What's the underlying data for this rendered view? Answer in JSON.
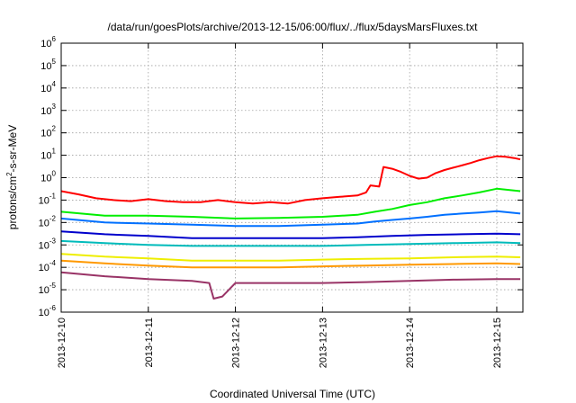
{
  "chart_data": {
    "type": "line",
    "title": "/data/run/goesPlots/archive/2013-12-15/06:00/flux/../flux/5daysMarsFluxes.txt",
    "xlabel": "Coordinated Universal Time (UTC)",
    "ylabel": {
      "base": "protons/cm",
      "sup": "2",
      "rest": "-s-sr-MeV"
    },
    "xlim": [
      0,
      5.3
    ],
    "ylim_log10": [
      -6,
      6
    ],
    "yscale": "log",
    "grid": true,
    "x_ticks": [
      {
        "x": 0,
        "label": "2013-12-10"
      },
      {
        "x": 1,
        "label": "2013-12-11"
      },
      {
        "x": 2,
        "label": "2013-12-12"
      },
      {
        "x": 3,
        "label": "2013-12-13"
      },
      {
        "x": 4,
        "label": "2013-12-14"
      },
      {
        "x": 5,
        "label": "2013-12-15"
      }
    ],
    "y_ticks": [
      {
        "exp": 6,
        "label": "10",
        "sup": "6"
      },
      {
        "exp": 5,
        "label": "10",
        "sup": "5"
      },
      {
        "exp": 4,
        "label": "10",
        "sup": "4"
      },
      {
        "exp": 3,
        "label": "10",
        "sup": "3"
      },
      {
        "exp": 2,
        "label": "10",
        "sup": "2"
      },
      {
        "exp": 1,
        "label": "10",
        "sup": "1"
      },
      {
        "exp": 0,
        "label": "10",
        "sup": "0"
      },
      {
        "exp": -1,
        "label": "10",
        "sup": "-1"
      },
      {
        "exp": -2,
        "label": "10",
        "sup": "-2"
      },
      {
        "exp": -3,
        "label": "10",
        "sup": "-3"
      },
      {
        "exp": -4,
        "label": "10",
        "sup": "-4"
      },
      {
        "exp": -5,
        "label": "10",
        "sup": "-5"
      },
      {
        "exp": -6,
        "label": "10",
        "sup": "-6"
      }
    ],
    "series": [
      {
        "color": "#ff0000",
        "points": [
          [
            0,
            0.25
          ],
          [
            0.2,
            0.18
          ],
          [
            0.4,
            0.12
          ],
          [
            0.6,
            0.1
          ],
          [
            0.8,
            0.09
          ],
          [
            1.0,
            0.11
          ],
          [
            1.2,
            0.09
          ],
          [
            1.4,
            0.08
          ],
          [
            1.6,
            0.08
          ],
          [
            1.8,
            0.1
          ],
          [
            2.0,
            0.08
          ],
          [
            2.2,
            0.07
          ],
          [
            2.4,
            0.08
          ],
          [
            2.6,
            0.07
          ],
          [
            2.8,
            0.1
          ],
          [
            3.0,
            0.12
          ],
          [
            3.2,
            0.14
          ],
          [
            3.4,
            0.16
          ],
          [
            3.5,
            0.22
          ],
          [
            3.55,
            0.45
          ],
          [
            3.65,
            0.4
          ],
          [
            3.7,
            3.0
          ],
          [
            3.8,
            2.5
          ],
          [
            3.9,
            1.8
          ],
          [
            4.0,
            1.2
          ],
          [
            4.1,
            0.9
          ],
          [
            4.2,
            1.0
          ],
          [
            4.3,
            1.6
          ],
          [
            4.4,
            2.2
          ],
          [
            4.5,
            2.8
          ],
          [
            4.6,
            3.5
          ],
          [
            4.7,
            4.5
          ],
          [
            4.8,
            6.0
          ],
          [
            4.9,
            7.5
          ],
          [
            5.0,
            9.0
          ],
          [
            5.1,
            8.5
          ],
          [
            5.2,
            7.5
          ],
          [
            5.27,
            6.5
          ]
        ]
      },
      {
        "color": "#00ee00",
        "points": [
          [
            0,
            0.03
          ],
          [
            0.5,
            0.02
          ],
          [
            1.0,
            0.02
          ],
          [
            1.5,
            0.018
          ],
          [
            2.0,
            0.015
          ],
          [
            2.5,
            0.016
          ],
          [
            3.0,
            0.018
          ],
          [
            3.4,
            0.022
          ],
          [
            3.6,
            0.03
          ],
          [
            3.8,
            0.04
          ],
          [
            4.0,
            0.06
          ],
          [
            4.2,
            0.08
          ],
          [
            4.4,
            0.12
          ],
          [
            4.6,
            0.16
          ],
          [
            4.8,
            0.22
          ],
          [
            5.0,
            0.32
          ],
          [
            5.27,
            0.25
          ]
        ]
      },
      {
        "color": "#0070ff",
        "points": [
          [
            0,
            0.015
          ],
          [
            0.5,
            0.01
          ],
          [
            1.0,
            0.009
          ],
          [
            1.5,
            0.008
          ],
          [
            2.0,
            0.007
          ],
          [
            2.5,
            0.007
          ],
          [
            3.0,
            0.008
          ],
          [
            3.4,
            0.009
          ],
          [
            3.6,
            0.011
          ],
          [
            3.8,
            0.013
          ],
          [
            4.0,
            0.015
          ],
          [
            4.2,
            0.018
          ],
          [
            4.4,
            0.022
          ],
          [
            4.6,
            0.025
          ],
          [
            4.8,
            0.028
          ],
          [
            5.0,
            0.032
          ],
          [
            5.27,
            0.025
          ]
        ]
      },
      {
        "color": "#0000cc",
        "points": [
          [
            0,
            0.004
          ],
          [
            0.5,
            0.003
          ],
          [
            1.0,
            0.0025
          ],
          [
            1.5,
            0.002
          ],
          [
            2.0,
            0.002
          ],
          [
            2.5,
            0.002
          ],
          [
            3.0,
            0.002
          ],
          [
            3.4,
            0.0022
          ],
          [
            3.8,
            0.0025
          ],
          [
            4.2,
            0.0028
          ],
          [
            4.6,
            0.003
          ],
          [
            5.0,
            0.0032
          ],
          [
            5.27,
            0.003
          ]
        ]
      },
      {
        "color": "#00bbbb",
        "points": [
          [
            0,
            0.0015
          ],
          [
            0.5,
            0.0012
          ],
          [
            1.0,
            0.001
          ],
          [
            1.5,
            0.0009
          ],
          [
            2.0,
            0.0009
          ],
          [
            2.5,
            0.0009
          ],
          [
            3.0,
            0.0009
          ],
          [
            3.5,
            0.001
          ],
          [
            4.0,
            0.0011
          ],
          [
            4.5,
            0.0012
          ],
          [
            5.0,
            0.0013
          ],
          [
            5.27,
            0.0012
          ]
        ]
      },
      {
        "color": "#eeee00",
        "points": [
          [
            0,
            0.0004
          ],
          [
            0.5,
            0.0003
          ],
          [
            1.0,
            0.00025
          ],
          [
            1.5,
            0.0002
          ],
          [
            2.0,
            0.0002
          ],
          [
            2.5,
            0.0002
          ],
          [
            3.0,
            0.00022
          ],
          [
            3.5,
            0.00024
          ],
          [
            4.0,
            0.00025
          ],
          [
            4.5,
            0.00028
          ],
          [
            5.0,
            0.0003
          ],
          [
            5.27,
            0.00028
          ]
        ]
      },
      {
        "color": "#ff9900",
        "points": [
          [
            0,
            0.0002
          ],
          [
            0.5,
            0.00015
          ],
          [
            1.0,
            0.00012
          ],
          [
            1.5,
            0.0001
          ],
          [
            2.0,
            0.0001
          ],
          [
            2.5,
            0.0001
          ],
          [
            3.0,
            0.00011
          ],
          [
            3.5,
            0.00012
          ],
          [
            4.0,
            0.00013
          ],
          [
            4.5,
            0.00014
          ],
          [
            5.0,
            0.00015
          ],
          [
            5.27,
            0.00014
          ]
        ]
      },
      {
        "color": "#993366",
        "points": [
          [
            0,
            6e-05
          ],
          [
            0.5,
            4e-05
          ],
          [
            1.0,
            3e-05
          ],
          [
            1.5,
            2.5e-05
          ],
          [
            1.7,
            2e-05
          ],
          [
            1.75,
            4e-06
          ],
          [
            1.85,
            5e-06
          ],
          [
            2.0,
            2e-05
          ],
          [
            2.5,
            2e-05
          ],
          [
            3.0,
            2e-05
          ],
          [
            3.5,
            2.2e-05
          ],
          [
            4.0,
            2.5e-05
          ],
          [
            4.5,
            2.8e-05
          ],
          [
            5.0,
            3e-05
          ],
          [
            5.27,
            3e-05
          ]
        ]
      }
    ]
  }
}
